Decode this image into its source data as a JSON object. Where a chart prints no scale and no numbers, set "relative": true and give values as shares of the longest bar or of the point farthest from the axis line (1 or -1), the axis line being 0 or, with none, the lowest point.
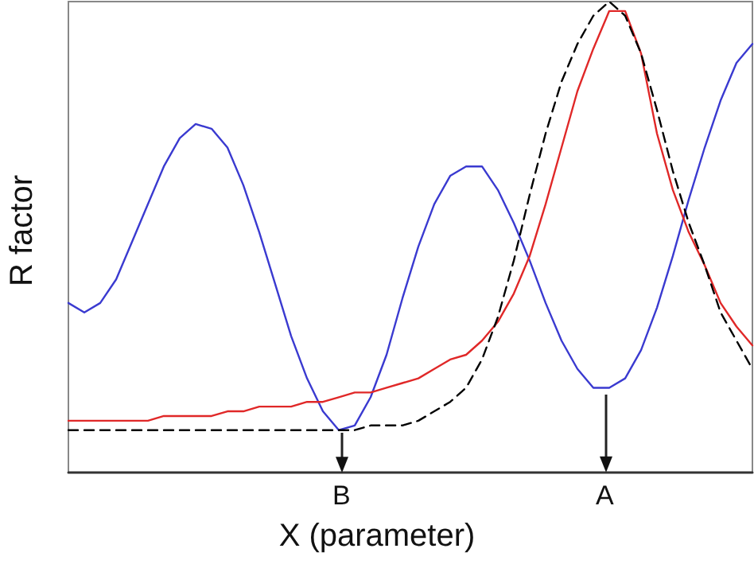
{
  "chart_data": {
    "type": "line",
    "xlabel": "X (parameter)",
    "ylabel": "R factor",
    "relative": true,
    "tick_labels": false,
    "marker": "none",
    "annotations": [
      "B",
      "A"
    ],
    "categories": [
      null,
      null,
      null,
      null,
      null,
      null,
      null,
      null,
      null,
      null,
      null,
      null,
      null,
      null,
      null,
      null,
      null,
      null,
      null,
      null,
      null,
      null,
      null,
      null,
      null,
      null,
      null,
      null,
      null,
      null,
      null,
      null,
      null,
      null,
      null,
      null,
      null,
      null,
      null,
      null,
      null,
      null,
      null,
      null
    ],
    "series": [
      {
        "color": "#3a3ad0",
        "line_style": "solid",
        "values": [
          0.36,
          0.34,
          0.36,
          0.41,
          0.49,
          0.57,
          0.65,
          0.71,
          0.74,
          0.73,
          0.69,
          0.61,
          0.51,
          0.4,
          0.29,
          0.2,
          0.13,
          0.09,
          0.1,
          0.16,
          0.25,
          0.37,
          0.48,
          0.57,
          0.63,
          0.65,
          0.65,
          0.6,
          0.53,
          0.45,
          0.36,
          0.28,
          0.22,
          0.18,
          0.18,
          0.2,
          0.26,
          0.35,
          0.46,
          0.58,
          0.69,
          0.79,
          0.87,
          0.91
        ]
      },
      {
        "color": "#e02828",
        "line_style": "solid",
        "values": [
          0.11,
          0.11,
          0.11,
          0.11,
          0.11,
          0.11,
          0.12,
          0.12,
          0.12,
          0.12,
          0.13,
          0.13,
          0.14,
          0.14,
          0.14,
          0.15,
          0.15,
          0.16,
          0.17,
          0.17,
          0.18,
          0.19,
          0.2,
          0.22,
          0.24,
          0.25,
          0.28,
          0.32,
          0.38,
          0.46,
          0.57,
          0.69,
          0.81,
          0.9,
          0.98,
          0.98,
          0.89,
          0.72,
          0.6,
          0.51,
          0.44,
          0.36,
          0.31,
          0.27
        ]
      },
      {
        "color": "#000000",
        "line_style": "dashed",
        "values": [
          0.09,
          0.09,
          0.09,
          0.09,
          0.09,
          0.09,
          0.09,
          0.09,
          0.09,
          0.09,
          0.09,
          0.09,
          0.09,
          0.09,
          0.09,
          0.09,
          0.09,
          0.09,
          0.09,
          0.1,
          0.1,
          0.1,
          0.11,
          0.13,
          0.15,
          0.18,
          0.24,
          0.33,
          0.45,
          0.59,
          0.72,
          0.83,
          0.91,
          0.97,
          1,
          0.97,
          0.89,
          0.77,
          0.64,
          0.53,
          0.44,
          0.34,
          0.28,
          0.22
        ]
      }
    ]
  }
}
